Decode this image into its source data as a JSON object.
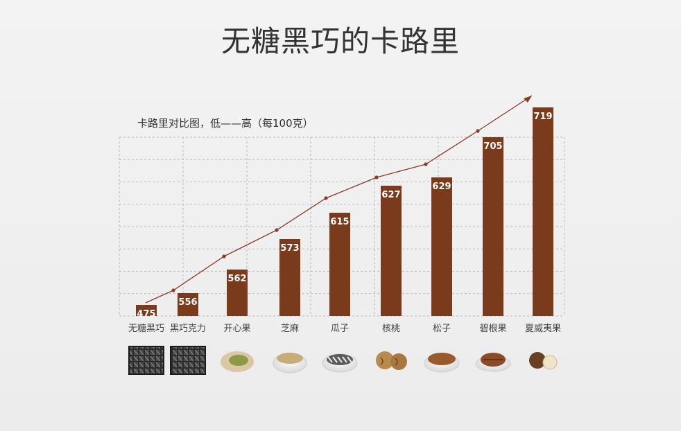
{
  "title": "无糖黑巧的卡路里",
  "subtitle": "卡路里对比图，低——高（每100克）",
  "colors": {
    "bar": "#7a3a1c",
    "trend_line": "#8a3b22",
    "grid": "#b9b9b9",
    "background": "#f0f0f0"
  },
  "chart_data": {
    "type": "bar",
    "categories": [
      "无糖黑巧",
      "黑巧克力",
      "开心果",
      "芝麻",
      "瓜子",
      "核桃",
      "松子",
      "碧根果",
      "夏威夷果"
    ],
    "values": [
      475,
      556,
      562,
      573,
      615,
      627,
      629,
      705,
      719
    ],
    "title": "无糖黑巧的卡路里",
    "subtitle": "卡路里对比图，低——高（每100克）",
    "data_labels": true,
    "grid": true,
    "trend_line": true,
    "category_icons": [
      "chocolate-bar-icon",
      "chocolate-bar-icon",
      "pistachio-icon",
      "sesame-bowl-icon",
      "sunflower-seeds-icon",
      "walnut-icon",
      "pine-nuts-icon",
      "pecan-icon",
      "macadamia-icon"
    ]
  }
}
